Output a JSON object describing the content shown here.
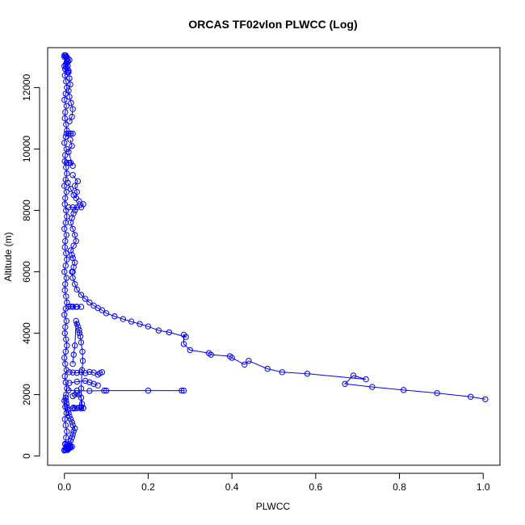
{
  "chart_data": {
    "type": "scatter",
    "title": "ORCAS TF02vlon PLWCC (Log)",
    "xlabel": "PLWCC",
    "ylabel": "Altitude (m)",
    "xlim": [
      -0.04,
      1.04
    ],
    "ylim": [
      -300,
      13300
    ],
    "x_ticks": [
      0.0,
      0.2,
      0.4,
      0.6,
      0.8,
      1.0
    ],
    "x_tick_labels": [
      "0.0",
      "0.2",
      "0.4",
      "0.6",
      "0.8",
      "1.0"
    ],
    "y_ticks": [
      0,
      2000,
      4000,
      6000,
      8000,
      10000,
      12000
    ],
    "y_tick_labels": [
      "0",
      "2000",
      "4000",
      "6000",
      "8000",
      "10000",
      "12000"
    ],
    "grid": false,
    "marker": "open-circle",
    "color": "#0000ff",
    "connected": true,
    "series": [
      {
        "x": [
          1.005,
          0.97,
          0.89,
          0.81,
          0.735,
          0.67,
          0.69,
          0.72,
          0.58,
          0.52,
          0.485,
          0.44,
          0.43,
          0.4,
          0.395,
          0.35,
          0.345,
          0.3,
          0.285,
          0.285,
          0.29,
          0.25,
          0.225,
          0.2,
          0.18,
          0.16,
          0.14,
          0.12,
          0.1,
          0.09,
          0.08,
          0.07,
          0.06,
          0.05,
          0.04,
          0.03,
          0.025,
          0.02,
          0.018
        ],
        "y": [
          1850,
          1930,
          2050,
          2150,
          2250,
          2350,
          2620,
          2500,
          2680,
          2730,
          2840,
          3100,
          2980,
          3200,
          3250,
          3300,
          3350,
          3450,
          3650,
          3950,
          3880,
          4030,
          4090,
          4220,
          4300,
          4380,
          4460,
          4550,
          4650,
          4750,
          4820,
          4900,
          5000,
          5120,
          5250,
          5420,
          5600,
          5800,
          6000
        ]
      },
      {
        "x": [
          0.285,
          0.28,
          0.2,
          0.1,
          0.095,
          0.06,
          0.03,
          0.01
        ],
        "y": [
          2130,
          2130,
          2130,
          2130,
          2130,
          2120,
          2130,
          2140
        ]
      },
      {
        "x": [
          0.09,
          0.085,
          0.08,
          0.07,
          0.06,
          0.05,
          0.04,
          0.03,
          0.02,
          0.012
        ],
        "y": [
          2730,
          2700,
          2650,
          2720,
          2740,
          2700,
          2730,
          2710,
          2720,
          2730
        ]
      },
      {
        "x": [
          0.012,
          0.03,
          0.05,
          0.06,
          0.07,
          0.08
        ],
        "y": [
          2380,
          2420,
          2450,
          2400,
          2350,
          2300
        ]
      },
      {
        "x": [
          0.045,
          0.04,
          0.04,
          0.042,
          0.044,
          0.043,
          0.04,
          0.038,
          0.036,
          0.035,
          0.033,
          0.03,
          0.028,
          0.025,
          0.022,
          0.02
        ],
        "y": [
          1560,
          1600,
          2200,
          2800,
          3100,
          3400,
          3700,
          3900,
          4000,
          4100,
          4200,
          4300,
          4400,
          3600,
          3300,
          3000
        ]
      },
      {
        "x": [
          0.02,
          0.022,
          0.025,
          0.03,
          0.035,
          0.04,
          0.045,
          0.042,
          0.04,
          0.035,
          0.03,
          0.025,
          0.02
        ],
        "y": [
          1550,
          1580,
          1550,
          1560,
          1570,
          1550,
          1560,
          1700,
          1900,
          2000,
          2050,
          2000,
          1950
        ]
      },
      {
        "x": [
          0.01,
          0.02,
          0.03,
          0.04,
          0.028,
          0.02,
          0.015
        ],
        "y": [
          4860,
          4860,
          4860,
          4860,
          4860,
          4860,
          4870
        ]
      },
      {
        "x": [
          0.01,
          0.02,
          0.03,
          0.04,
          0.045,
          0.035,
          0.025
        ],
        "y": [
          8100,
          8100,
          8100,
          8100,
          8200,
          8300,
          8000
        ]
      },
      {
        "x": [
          0.008,
          0.015,
          0.022,
          0.028,
          0.03,
          0.025,
          0.032,
          0.02
        ],
        "y": [
          8900,
          8700,
          8500,
          8400,
          8600,
          8800,
          8950,
          9150
        ]
      },
      {
        "x": [
          0.005,
          0.01,
          0.015,
          0.02,
          0.015,
          0.01
        ],
        "y": [
          10500,
          10500,
          10500,
          10500,
          10500,
          10500
        ]
      },
      {
        "x": [
          0.005,
          0.01,
          0.015,
          0.02,
          0.01,
          0.018,
          0.014
        ],
        "y": [
          9550,
          9550,
          9550,
          9450,
          9900,
          10100,
          10300
        ]
      },
      {
        "x": [
          0.02,
          0.022,
          0.025,
          0.02,
          0.018,
          0.015,
          0.022,
          0.028,
          0.025,
          0.02,
          0.015,
          0.018,
          0.022
        ],
        "y": [
          6000,
          6150,
          6300,
          6450,
          6550,
          6700,
          6850,
          7000,
          7200,
          7400,
          7600,
          7750,
          7900
        ]
      },
      {
        "x": [
          0.012,
          0.018,
          0.02,
          0.016,
          0.012,
          0.01,
          0.014,
          0.012,
          0.01,
          0.008,
          0.006,
          0.005
        ],
        "y": [
          10900,
          11050,
          11300,
          11500,
          11700,
          11900,
          12100,
          12300,
          12500,
          12700,
          12850,
          13000
        ]
      },
      {
        "x": [
          0.008,
          0.01,
          0.012,
          0.015,
          0.018,
          0.02,
          0.022,
          0.025,
          0.02,
          0.018,
          0.015,
          0.012,
          0.01,
          0.008,
          0.006,
          0.005,
          0.004,
          0.003
        ],
        "y": [
          200,
          300,
          400,
          500,
          600,
          700,
          800,
          900,
          1000,
          1100,
          1200,
          1300,
          1400,
          1500,
          1600,
          1700,
          1800,
          1900
        ]
      },
      {
        "x": [
          0.0,
          0.002,
          0.004,
          0.006,
          0.003,
          0.001,
          0.005,
          0.002,
          0.0,
          0.004,
          0.006,
          0.003,
          0.001,
          0.005,
          0.002,
          0.0,
          0.003,
          0.006,
          0.004,
          0.001,
          0.002,
          0.005,
          0.0,
          0.003,
          0.006,
          0.004,
          0.001,
          0.002,
          0.005,
          0.0,
          0.003,
          0.006,
          0.004,
          0.001,
          0.002,
          0.005,
          0.0,
          0.003,
          0.006,
          0.004,
          0.001,
          0.002,
          0.005,
          0.0,
          0.003,
          0.006,
          0.004,
          0.001,
          0.002,
          0.005,
          0.0,
          0.003,
          0.006,
          0.004,
          0.001,
          0.002,
          0.005,
          0.0,
          0.003,
          0.006,
          0.004,
          0.001,
          0.002,
          0.005,
          0.0,
          0.003
        ],
        "y": [
          200,
          400,
          600,
          800,
          1000,
          1200,
          1400,
          1600,
          1800,
          2000,
          2200,
          2400,
          2600,
          2800,
          3000,
          3200,
          3400,
          3600,
          3800,
          4000,
          4200,
          4400,
          4600,
          4800,
          5000,
          5200,
          5400,
          5600,
          5800,
          6000,
          6200,
          6400,
          6600,
          6800,
          7000,
          7200,
          7400,
          7600,
          7800,
          8000,
          8200,
          8400,
          8600,
          8800,
          9000,
          9200,
          9400,
          9600,
          9800,
          10000,
          10200,
          10400,
          10600,
          10800,
          11000,
          11200,
          11400,
          11600,
          11800,
          12000,
          12200,
          12400,
          12600,
          12800,
          13000,
          13050
        ]
      },
      {
        "x": [
          0.0,
          0.003,
          0.006,
          0.009,
          0.012,
          0.008,
          0.004,
          0.0,
          0.002,
          0.005,
          0.01,
          0.007
        ],
        "y": [
          12700,
          12750,
          12800,
          12850,
          12900,
          12950,
          13000,
          13050,
          12600,
          12650,
          12550,
          12500
        ]
      },
      {
        "x": [
          0.0,
          0.003,
          0.006,
          0.009,
          0.012,
          0.015,
          0.018,
          0.014,
          0.01,
          0.006,
          0.002,
          0.004
        ],
        "y": [
          180,
          200,
          220,
          240,
          260,
          280,
          300,
          320,
          340,
          360,
          380,
          250
        ]
      }
    ]
  }
}
